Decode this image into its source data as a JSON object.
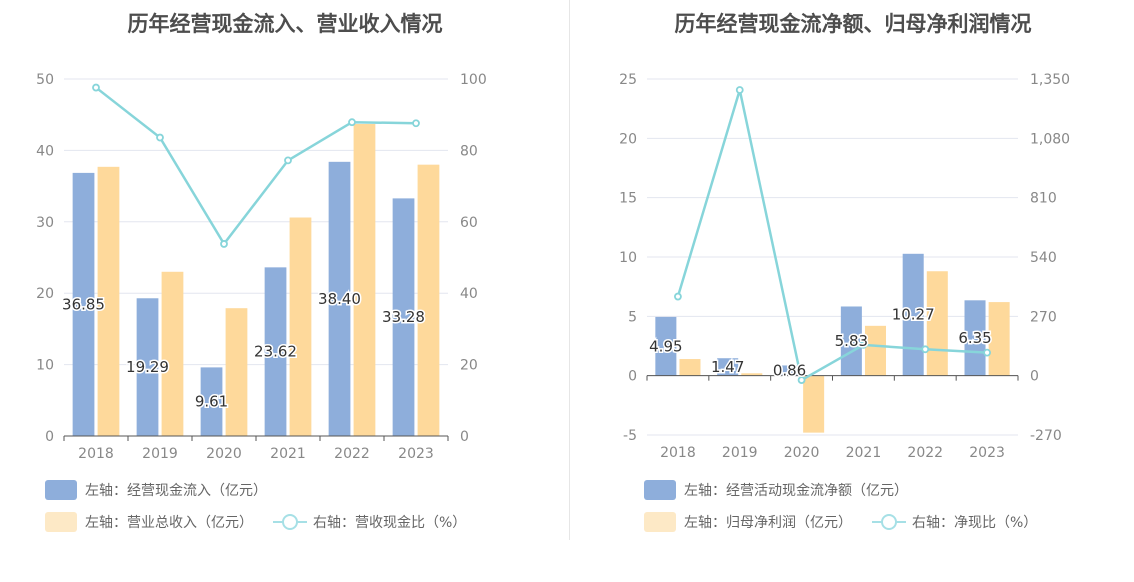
{
  "chart_data": [
    {
      "type": "bar",
      "title": "历年经营现金流入、营业收入情况",
      "categories": [
        "2018",
        "2019",
        "2020",
        "2021",
        "2022",
        "2023"
      ],
      "y_left": {
        "ticks": [
          "0",
          "10",
          "20",
          "30",
          "40",
          "50"
        ],
        "ylim": [
          0,
          50
        ]
      },
      "y_right": {
        "ticks": [
          "0",
          "20",
          "40",
          "60",
          "80",
          "100"
        ],
        "ylim": [
          0,
          100
        ]
      },
      "series": [
        {
          "name": "左轴：经营现金流入（亿元）",
          "axis": "left",
          "type": "bar",
          "color": "#8eaedb",
          "values": [
            36.85,
            19.29,
            9.61,
            23.62,
            38.4,
            33.28
          ],
          "labels": [
            "36.85",
            "19.29",
            "9.61",
            "23.62",
            "38.40",
            "33.28"
          ]
        },
        {
          "name": "左轴：营业总收入（亿元）",
          "axis": "left",
          "type": "bar",
          "color": "#fed99b",
          "values": [
            37.7,
            23.0,
            17.9,
            30.6,
            43.7,
            38.0
          ]
        },
        {
          "name": "右轴：营收现金比（%）",
          "axis": "right",
          "type": "line",
          "color": "#87d5da",
          "values": [
            97.6,
            83.6,
            53.8,
            77.2,
            87.9,
            87.6
          ]
        }
      ]
    },
    {
      "type": "bar",
      "title": "历年经营现金流净额、归母净利润情况",
      "categories": [
        "2018",
        "2019",
        "2020",
        "2021",
        "2022",
        "2023"
      ],
      "y_left": {
        "ticks": [
          "-5",
          "0",
          "5",
          "10",
          "15",
          "20",
          "25"
        ],
        "ylim": [
          -5,
          25
        ]
      },
      "y_right": {
        "ticks": [
          "-270",
          "0",
          "270",
          "540",
          "810",
          "1,080",
          "1,350"
        ],
        "ylim": [
          -270,
          1350
        ]
      },
      "series": [
        {
          "name": "左轴：经营活动现金流净额（亿元）",
          "axis": "left",
          "type": "bar",
          "color": "#8eaedb",
          "values": [
            4.95,
            1.47,
            0.86,
            5.83,
            10.27,
            6.35
          ],
          "labels": [
            "4.95",
            "1.47",
            "0.86",
            "5.83",
            "10.27",
            "6.35"
          ]
        },
        {
          "name": "左轴：归母净利润（亿元）",
          "axis": "left",
          "type": "bar",
          "color": "#fed99b",
          "values": [
            1.4,
            0.2,
            -4.8,
            4.2,
            8.8,
            6.2
          ]
        },
        {
          "name": "右轴：净现比（%）",
          "axis": "right",
          "type": "line",
          "color": "#87d5da",
          "values": [
            360,
            1300,
            -20,
            140,
            120,
            105
          ]
        }
      ]
    }
  ]
}
